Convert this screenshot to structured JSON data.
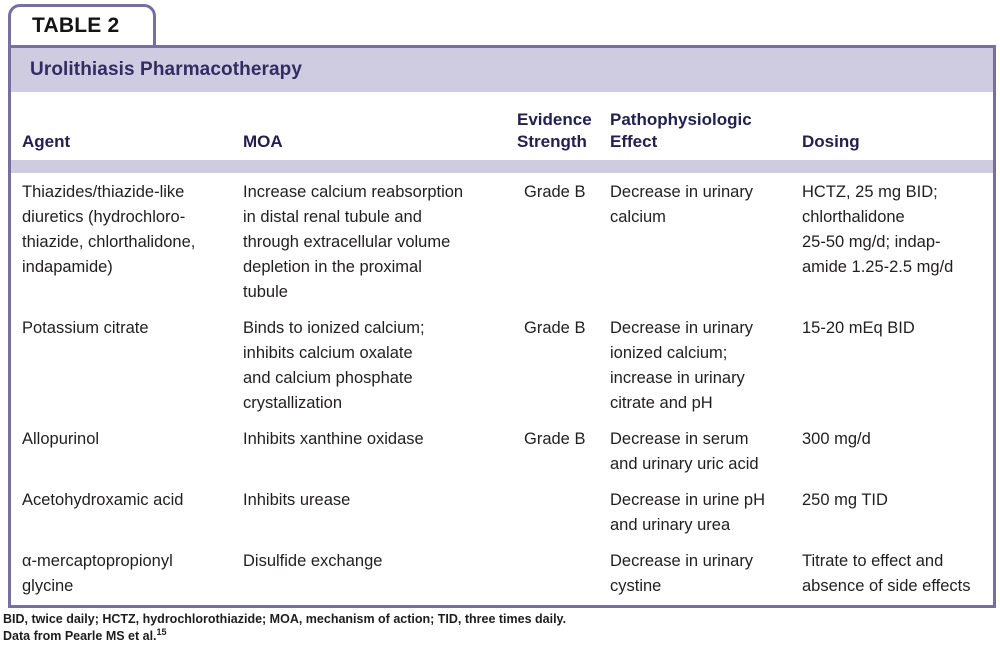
{
  "tab_label": "TABLE 2",
  "table": {
    "title": "Urolithiasis Pharmacotherapy",
    "columns": {
      "agent": "Agent",
      "moa": "MOA",
      "evidence": "Evidence\nStrength",
      "effect": "Pathophysiologic\nEffect",
      "dosing": "Dosing"
    },
    "rows": [
      {
        "agent": "Thiazides/thiazide-like\ndiuretics (hydrochloro-\nthiazide, chlorthalidone,\nindapamide)",
        "moa": "Increase calcium reabsorption\nin distal renal tubule and\nthrough extracellular volume\ndepletion in the proximal\ntubule",
        "evidence": "Grade B",
        "effect": "Decrease in urinary\ncalcium",
        "dosing": "HCTZ, 25 mg BID;\nchlorthalidone\n25-50 mg/d; indap-\namide 1.25-2.5 mg/d"
      },
      {
        "agent": "Potassium citrate",
        "moa": "Binds to ionized calcium;\ninhibits calcium oxalate\nand calcium phosphate\ncrystallization",
        "evidence": "Grade B",
        "effect": "Decrease in urinary\nionized calcium;\nincrease in urinary\ncitrate and pH",
        "dosing": "15-20 mEq BID"
      },
      {
        "agent": "Allopurinol",
        "moa": "Inhibits xanthine oxidase",
        "evidence": "Grade B",
        "effect": "Decrease in serum\nand urinary uric acid",
        "dosing": "300 mg/d"
      },
      {
        "agent": "Acetohydroxamic acid",
        "moa": "Inhibits urease",
        "evidence": "",
        "effect": "Decrease in urine pH\nand urinary urea",
        "dosing": "250 mg TID"
      },
      {
        "agent": "α-mercaptopropionyl\nglycine",
        "moa": "Disulfide exchange",
        "evidence": "",
        "effect": "Decrease in urinary\ncystine",
        "dosing": "Titrate to effect and\nabsence of side effects"
      }
    ]
  },
  "footnotes": {
    "abbreviations": "BID, twice daily; HCTZ, hydrochlorothiazide; MOA, mechanism of action; TID, three times daily.",
    "source": "Data from Pearle MS et al.",
    "source_ref": "15"
  },
  "colors": {
    "border_purple": "#776fa2",
    "band_lavender": "#cfcce2",
    "title_text": "#312d62",
    "header_text": "#232050",
    "body_text": "#211e1f"
  }
}
